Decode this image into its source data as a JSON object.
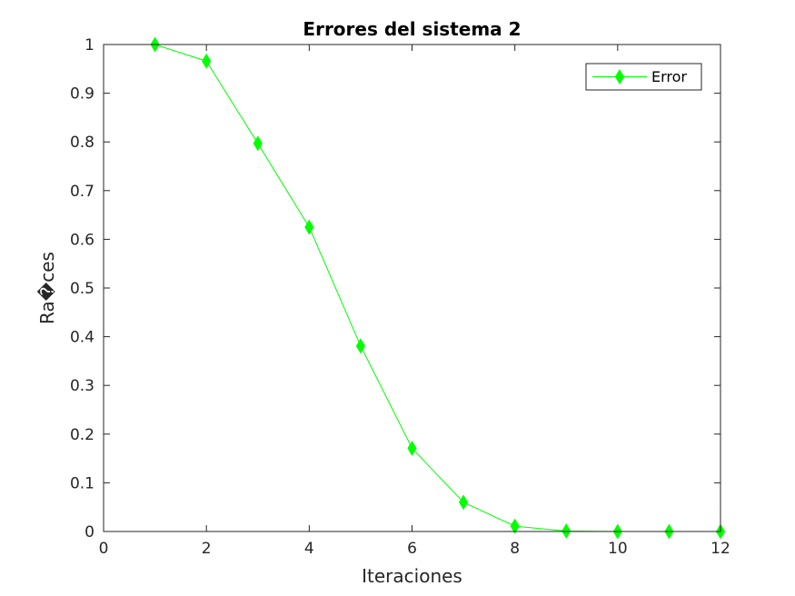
{
  "chart_data": {
    "type": "line",
    "title": "Errores del sistema 2",
    "xlabel": "Iteraciones",
    "ylabel": "Ra�ces",
    "xlim": [
      0,
      12
    ],
    "ylim": [
      0,
      1
    ],
    "xticks": [
      0,
      2,
      4,
      6,
      8,
      10,
      12
    ],
    "yticks": [
      0,
      0.1,
      0.2,
      0.3,
      0.4,
      0.5,
      0.6,
      0.7,
      0.8,
      0.9,
      1
    ],
    "grid": false,
    "legend_position": "top-right",
    "series": [
      {
        "name": "Error",
        "color": "#00ff00",
        "marker": "diamond",
        "x": [
          1,
          2,
          3,
          4,
          5,
          6,
          7,
          8,
          9,
          10,
          11,
          12
        ],
        "y": [
          1.0,
          0.966,
          0.797,
          0.625,
          0.381,
          0.171,
          0.06,
          0.011,
          0.001,
          0.0,
          0.0,
          0.0
        ]
      }
    ]
  }
}
